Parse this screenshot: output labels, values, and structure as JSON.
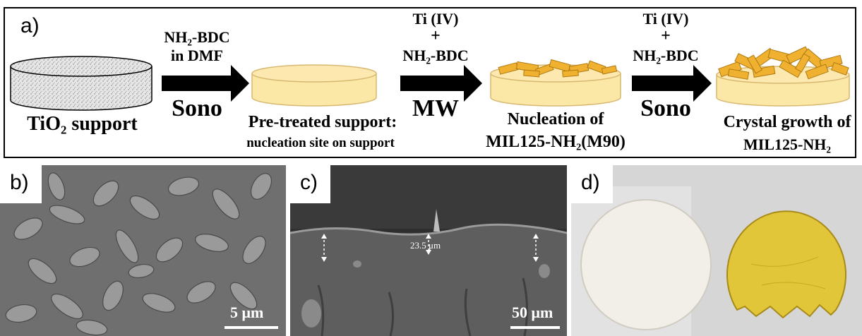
{
  "panel_a": {
    "label": "a)",
    "support": "TiO₂ support",
    "step1": {
      "reagent_line1": "NH₂-BDC",
      "reagent_line2": "in DMF",
      "method": "Sono"
    },
    "pretreated": {
      "line1": "Pre-treated support:",
      "line2": "nucleation site on support"
    },
    "step2": {
      "reagent_line1": "Ti (IV)",
      "plus": "+",
      "reagent_line2": "NH₂-BDC",
      "method": "MW"
    },
    "nucleation": {
      "line1": "Nucleation of",
      "line2": "MIL125-NH₂(M90)"
    },
    "step3": {
      "reagent_line1": "Ti (IV)",
      "plus": "+",
      "reagent_line2": "NH₂-BDC",
      "method": "Sono"
    },
    "growth": {
      "line1": "Crystal growth of",
      "line2": "MIL125-NH₂"
    }
  },
  "panel_b": {
    "label": "b)",
    "scale": "5 μm"
  },
  "panel_c": {
    "label": "c)",
    "scale": "50 μm",
    "thickness": "23.5 μm"
  },
  "panel_d": {
    "label": "d)"
  },
  "colors": {
    "yellow_fill": "#fbe7a6",
    "crystal": "#f0b130",
    "sem_gray": "#7a7a7a",
    "photo_bg": "#d8d8d8"
  }
}
